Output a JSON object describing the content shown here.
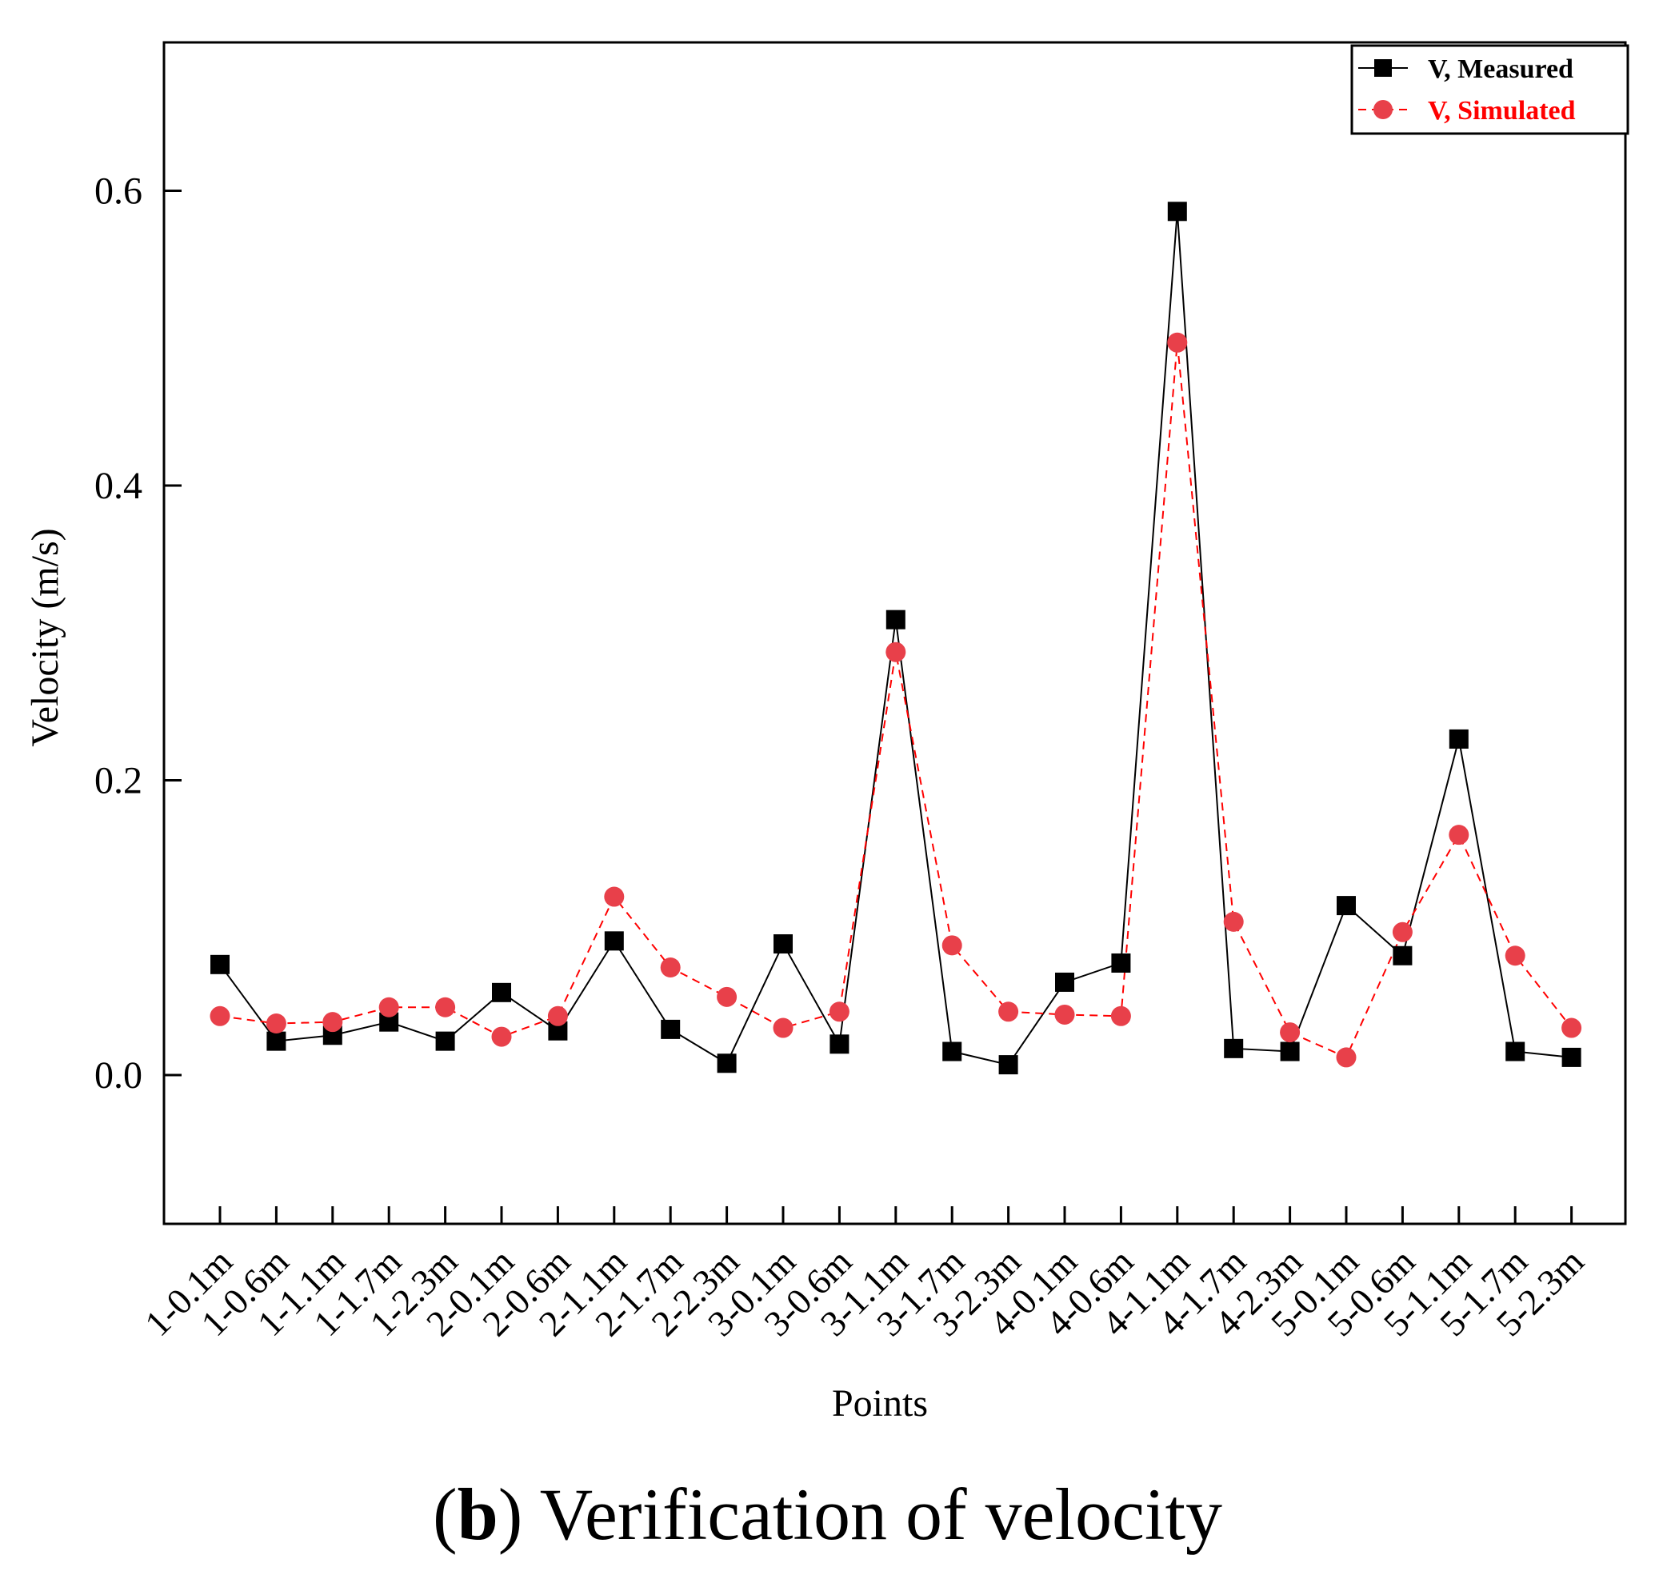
{
  "chart_data": {
    "type": "line",
    "xlabel": "Points",
    "ylabel": "Velocity (m/s)",
    "ylim": [
      -0.1,
      0.7
    ],
    "yticks": [
      "0.0",
      "0.2",
      "0.4",
      "0.6"
    ],
    "legend_position": "top-right",
    "categories": [
      "1-0.1m",
      "1-0.6m",
      "1-1.1m",
      "1-1.7m",
      "1-2.3m",
      "2-0.1m",
      "2-0.6m",
      "2-1.1m",
      "2-1.7m",
      "2-2.3m",
      "3-0.1m",
      "3-0.6m",
      "3-1.1m",
      "3-1.7m",
      "3-2.3m",
      "4-0.1m",
      "4-0.6m",
      "4-1.1m",
      "4-1.7m",
      "4-2.3m",
      "5-0.1m",
      "5-0.6m",
      "5-1.1m",
      "5-1.7m",
      "5-2.3m"
    ],
    "series": [
      {
        "name": "V, Measured",
        "color": "#000000",
        "marker": "square",
        "line": "solid",
        "values": [
          0.075,
          0.023,
          0.027,
          0.036,
          0.023,
          0.056,
          0.03,
          0.091,
          0.031,
          0.008,
          0.089,
          0.021,
          0.309,
          0.016,
          0.007,
          0.063,
          0.076,
          0.586,
          0.018,
          0.016,
          0.115,
          0.081,
          0.228,
          0.016,
          0.012
        ]
      },
      {
        "name": "V, Simulated",
        "color": "#ff0000",
        "marker_color": "#e8404a",
        "marker": "circle",
        "line": "dashed",
        "values": [
          0.04,
          0.035,
          0.036,
          0.046,
          0.046,
          0.026,
          0.04,
          0.121,
          0.073,
          0.053,
          0.032,
          0.043,
          0.287,
          0.088,
          0.043,
          0.041,
          0.04,
          0.497,
          0.104,
          0.029,
          0.012,
          0.097,
          0.163,
          0.081,
          0.032
        ]
      }
    ]
  },
  "caption": {
    "open_paren": "(",
    "letter": "b",
    "text": ") Verification of velocity"
  }
}
